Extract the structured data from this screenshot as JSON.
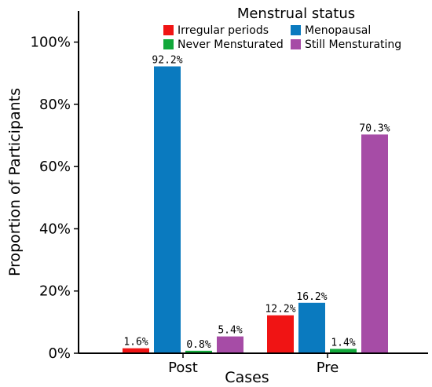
{
  "chart_data": {
    "type": "bar",
    "categories": [
      "Post",
      "Pre"
    ],
    "xlabel": "Cases",
    "ylabel": "Proportion of Participants",
    "ylim": [
      0,
      110
    ],
    "yticks": [
      0,
      20,
      40,
      60,
      80,
      100
    ],
    "ytick_labels": [
      "0%",
      "20%",
      "40%",
      "60%",
      "80%",
      "100%"
    ],
    "legend_title": "Menstrual status",
    "legend_position": "top-right",
    "grid": false,
    "series": [
      {
        "name": "Irregular periods",
        "color": "#f01414",
        "values": [
          1.6,
          12.2
        ],
        "labels": [
          "1.6%",
          "12.2%"
        ]
      },
      {
        "name": "Menopausal",
        "color": "#0a7abf",
        "values": [
          92.2,
          16.2
        ],
        "labels": [
          "92.2%",
          "16.2%"
        ]
      },
      {
        "name": "Never Mensturated",
        "color": "#12a83a",
        "values": [
          0.8,
          1.4
        ],
        "labels": [
          "0.8%",
          "1.4%"
        ]
      },
      {
        "name": "Still Mensturating",
        "color": "#a64ca6",
        "values": [
          5.4,
          70.3
        ],
        "labels": [
          "5.4%",
          "70.3%"
        ]
      }
    ]
  }
}
